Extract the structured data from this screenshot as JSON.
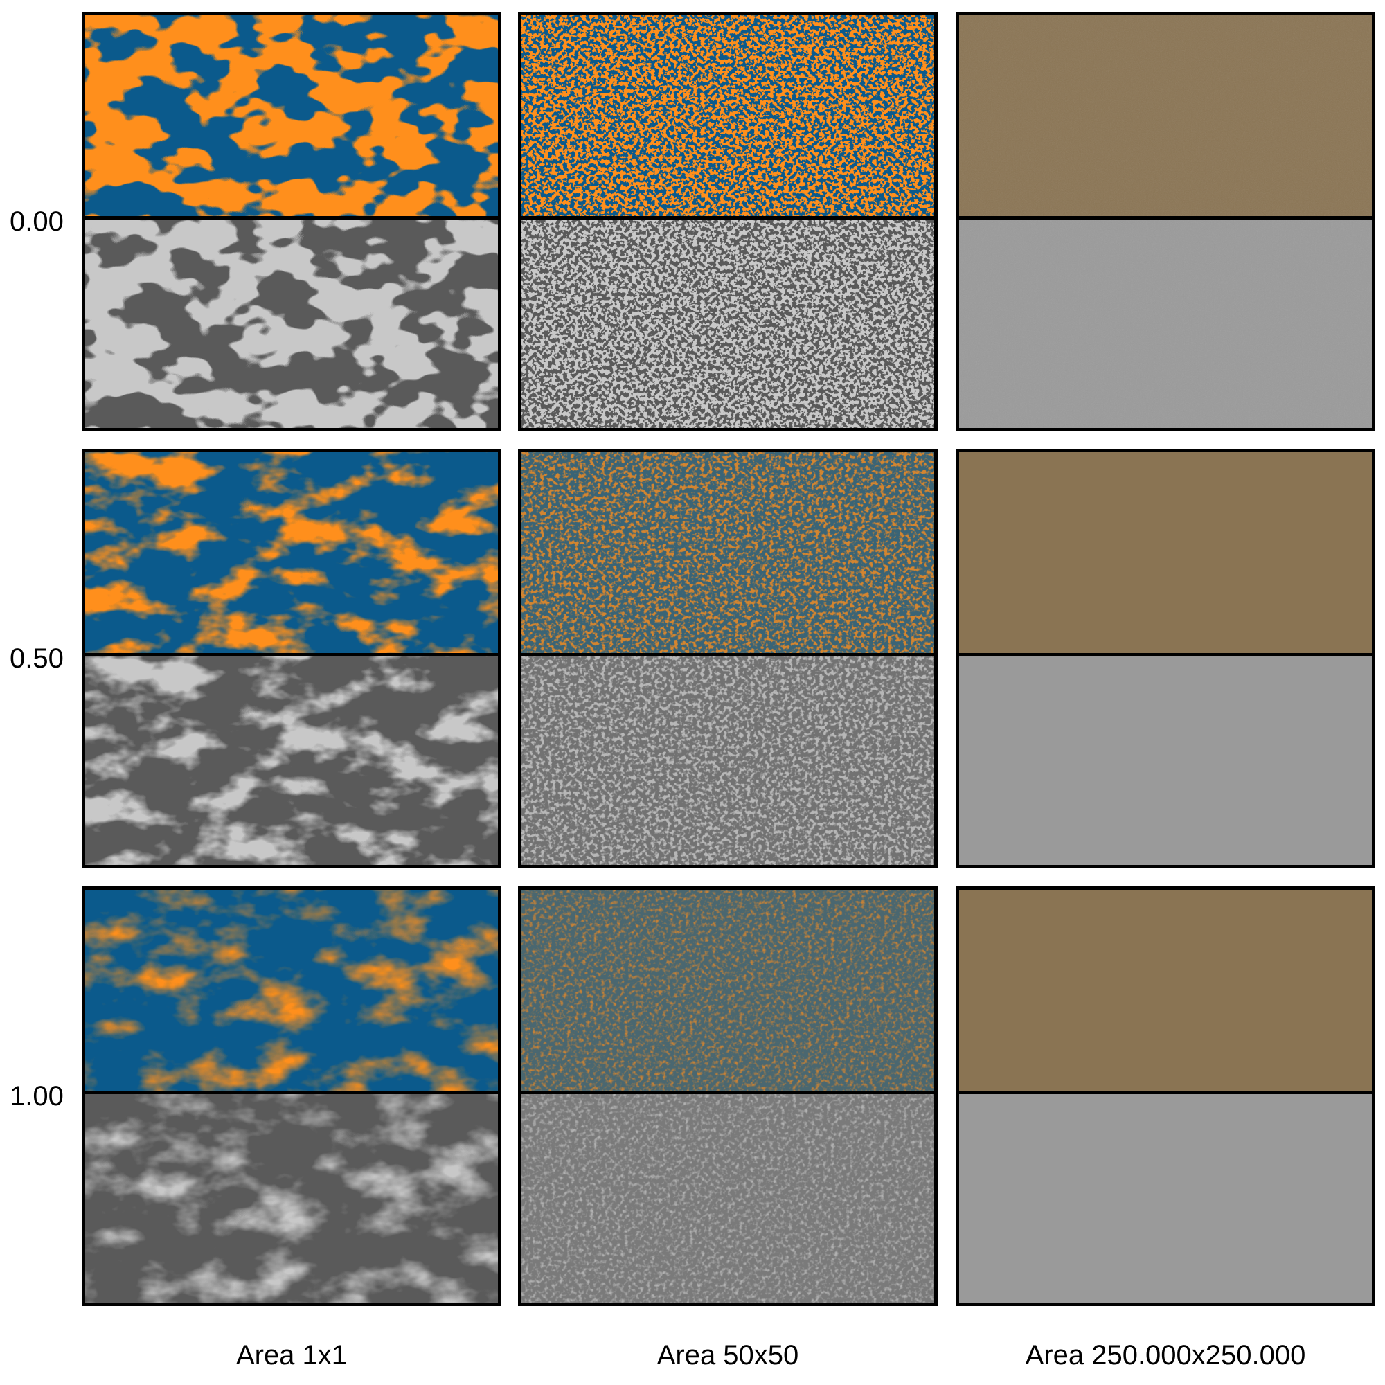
{
  "rows": [
    {
      "label": "0.00"
    },
    {
      "label": "0.50"
    },
    {
      "label": "1.00"
    }
  ],
  "columns": [
    {
      "label": "Area 1x1",
      "style": "coarse"
    },
    {
      "label": "Area 50x50",
      "style": "fine"
    },
    {
      "label": "Area 250.000x250.000",
      "style": "flat"
    }
  ],
  "colors": {
    "orange": "#ff8f1a",
    "blue": "#0b5a8c",
    "mixed_brown": "#8a7453",
    "gray_light": "#c8c8c8",
    "gray_dark": "#5a5a5a",
    "gray_flat": "#9a9a9a"
  }
}
